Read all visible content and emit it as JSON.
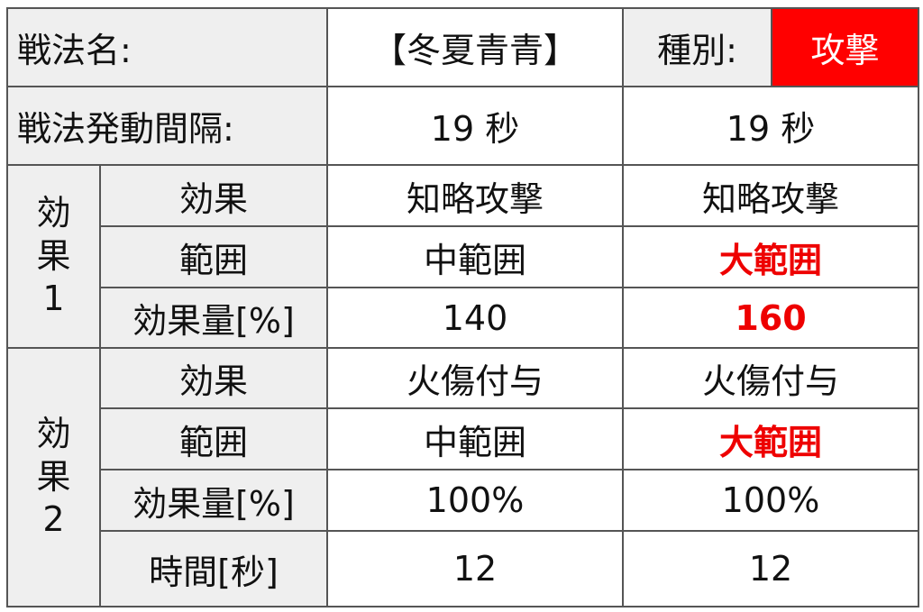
{
  "header": {
    "name_label": "戦法名:",
    "name_value": "【冬夏青青】",
    "type_label": "種別:",
    "type_value": "攻撃"
  },
  "interval": {
    "label": "戦法発動間隔:",
    "values": [
      "19 秒",
      "19 秒"
    ]
  },
  "effect1": {
    "group_label": [
      "効",
      "果",
      "1"
    ],
    "rows": [
      {
        "label": "効果",
        "values": [
          "知略攻撃",
          "知略攻撃"
        ]
      },
      {
        "label": "範囲",
        "values": [
          "中範囲",
          "大範囲"
        ]
      },
      {
        "label": "効果量[%]",
        "values": [
          "140",
          "160"
        ]
      }
    ]
  },
  "effect2": {
    "group_label": [
      "効",
      "果",
      "2"
    ],
    "rows": [
      {
        "label": "効果",
        "values": [
          "火傷付与",
          "火傷付与"
        ]
      },
      {
        "label": "範囲",
        "values": [
          "中範囲",
          "大範囲"
        ]
      },
      {
        "label": "効果量[%]",
        "values": [
          "100%",
          "100%"
        ]
      },
      {
        "label": "時間[秒]",
        "values": [
          "12",
          "12"
        ]
      }
    ]
  },
  "colors": {
    "header_bg": "#efefef",
    "type_bg": "#ff0000",
    "highlight": "#ee0000",
    "border": "#555555"
  }
}
